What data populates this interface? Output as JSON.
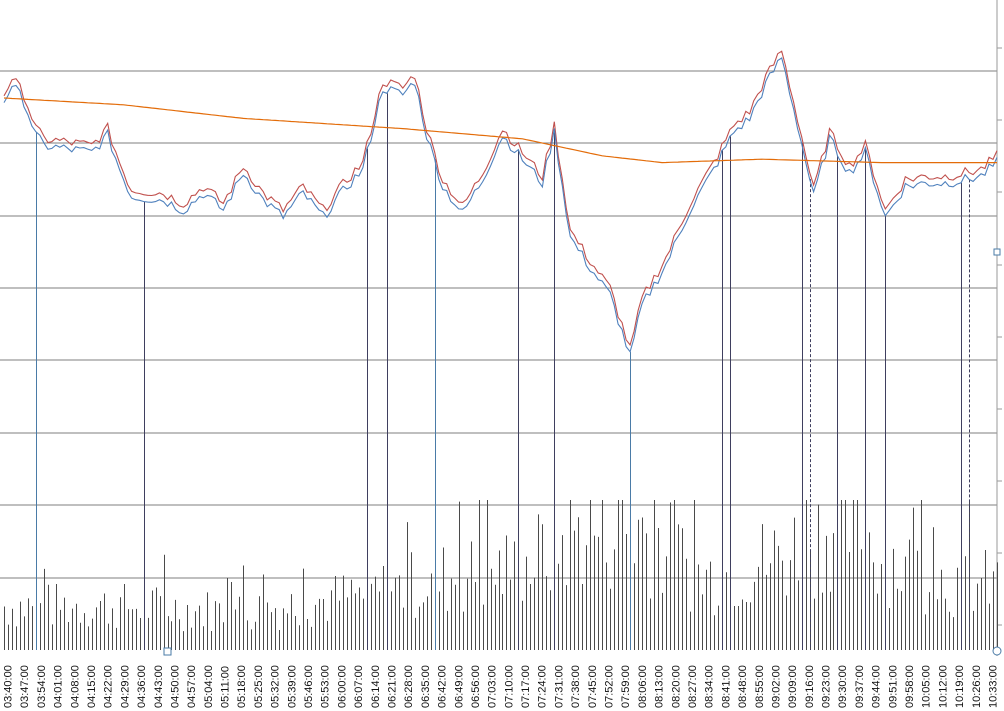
{
  "colors": {
    "background": "#ffffff",
    "grid": "#7f7f7f",
    "high_line": "#c0504d",
    "low_line": "#4f81bd",
    "moving_average": "#e36c09",
    "volume_bars": "#4a4a4a",
    "signal_line_blue": "#4a7ba7",
    "signal_line_dark": "#3f3f5f",
    "handle": "#4a7ba7"
  },
  "chart_data": {
    "type": "line",
    "x_tick_labels": [
      "03:40:00",
      "03:47:00",
      "03:54:00",
      "04:01:00",
      "04:08:00",
      "04:15:00",
      "04:22:00",
      "04:29:00",
      "04:36:00",
      "04:43:00",
      "04:50:00",
      "04:57:00",
      "05:04:00",
      "05:11:00",
      "05:18:00",
      "05:25:00",
      "05:32:00",
      "05:39:00",
      "05:46:00",
      "05:53:00",
      "06:00:00",
      "06:07:00",
      "06:14:00",
      "06:21:00",
      "06:28:00",
      "06:35:00",
      "06:42:00",
      "06:49:00",
      "06:56:00",
      "07:03:00",
      "07:10:00",
      "07:17:00",
      "07:24:00",
      "07:31:00",
      "07:38:00",
      "07:45:00",
      "07:52:00",
      "07:59:00",
      "08:06:00",
      "08:13:00",
      "08:20:00",
      "08:27:00",
      "08:34:00",
      "08:41:00",
      "08:48:00",
      "08:55:00",
      "09:02:00",
      "09:09:00",
      "09:16:00",
      "09:23:00",
      "09:30:00",
      "09:37:00",
      "09:44:00",
      "09:51:00",
      "09:58:00",
      "10:05:00",
      "10:12:00",
      "10:19:00",
      "10:26:00",
      "10:33:00"
    ],
    "price_keypoints": [
      {
        "t": 0,
        "v": 80
      },
      {
        "t": 2,
        "v": 85
      },
      {
        "t": 5,
        "v": 80
      },
      {
        "t": 8,
        "v": 70
      },
      {
        "t": 10,
        "v": 67
      },
      {
        "t": 16,
        "v": 66
      },
      {
        "t": 22,
        "v": 65
      },
      {
        "t": 26,
        "v": 70
      },
      {
        "t": 29,
        "v": 60
      },
      {
        "t": 32,
        "v": 52
      },
      {
        "t": 40,
        "v": 51
      },
      {
        "t": 45,
        "v": 48
      },
      {
        "t": 50,
        "v": 53
      },
      {
        "t": 55,
        "v": 48
      },
      {
        "t": 60,
        "v": 59
      },
      {
        "t": 65,
        "v": 51
      },
      {
        "t": 70,
        "v": 46
      },
      {
        "t": 75,
        "v": 53
      },
      {
        "t": 80,
        "v": 46
      },
      {
        "t": 86,
        "v": 55
      },
      {
        "t": 90,
        "v": 60
      },
      {
        "t": 95,
        "v": 84
      },
      {
        "t": 100,
        "v": 82
      },
      {
        "t": 103,
        "v": 86
      },
      {
        "t": 106,
        "v": 70
      },
      {
        "t": 110,
        "v": 55
      },
      {
        "t": 115,
        "v": 47
      },
      {
        "t": 120,
        "v": 57
      },
      {
        "t": 125,
        "v": 70
      },
      {
        "t": 130,
        "v": 63
      },
      {
        "t": 135,
        "v": 56
      },
      {
        "t": 138,
        "v": 71
      },
      {
        "t": 142,
        "v": 40
      },
      {
        "t": 147,
        "v": 31
      },
      {
        "t": 152,
        "v": 23
      },
      {
        "t": 157,
        "v": 5
      },
      {
        "t": 160,
        "v": 20
      },
      {
        "t": 166,
        "v": 32
      },
      {
        "t": 172,
        "v": 48
      },
      {
        "t": 178,
        "v": 60
      },
      {
        "t": 183,
        "v": 71
      },
      {
        "t": 187,
        "v": 75
      },
      {
        "t": 191,
        "v": 85
      },
      {
        "t": 195,
        "v": 93
      },
      {
        "t": 199,
        "v": 73
      },
      {
        "t": 203,
        "v": 52
      },
      {
        "t": 207,
        "v": 69
      },
      {
        "t": 212,
        "v": 59
      },
      {
        "t": 216,
        "v": 65
      },
      {
        "t": 221,
        "v": 46
      },
      {
        "t": 226,
        "v": 55
      },
      {
        "t": 231,
        "v": 56
      },
      {
        "t": 236,
        "v": 56
      },
      {
        "t": 241,
        "v": 57
      },
      {
        "t": 245,
        "v": 58
      },
      {
        "t": 249,
        "v": 62
      }
    ],
    "moving_average_keypoints": [
      {
        "t": 0,
        "v": 80
      },
      {
        "t": 30,
        "v": 78
      },
      {
        "t": 60,
        "v": 74
      },
      {
        "t": 100,
        "v": 71
      },
      {
        "t": 130,
        "v": 68
      },
      {
        "t": 150,
        "v": 63
      },
      {
        "t": 165,
        "v": 61
      },
      {
        "t": 190,
        "v": 62
      },
      {
        "t": 220,
        "v": 61
      },
      {
        "t": 249,
        "v": 61
      }
    ],
    "volume_profile": [
      {
        "t": 0,
        "v": 8
      },
      {
        "t": 30,
        "v": 8
      },
      {
        "t": 60,
        "v": 7
      },
      {
        "t": 90,
        "v": 10
      },
      {
        "t": 110,
        "v": 13
      },
      {
        "t": 130,
        "v": 15
      },
      {
        "t": 145,
        "v": 22
      },
      {
        "t": 160,
        "v": 22
      },
      {
        "t": 175,
        "v": 13
      },
      {
        "t": 195,
        "v": 17
      },
      {
        "t": 210,
        "v": 24
      },
      {
        "t": 225,
        "v": 15
      },
      {
        "t": 240,
        "v": 12
      },
      {
        "t": 249,
        "v": 12
      }
    ],
    "signal_markers": [
      {
        "t": 8,
        "color": "blue",
        "style": "solid"
      },
      {
        "t": 35,
        "color": "dark",
        "style": "solid"
      },
      {
        "t": 91,
        "color": "dark",
        "style": "solid"
      },
      {
        "t": 96,
        "color": "dark",
        "style": "solid"
      },
      {
        "t": 108,
        "color": "blue",
        "style": "solid"
      },
      {
        "t": 129,
        "color": "dark",
        "style": "solid"
      },
      {
        "t": 138,
        "color": "dark",
        "style": "solid"
      },
      {
        "t": 157,
        "color": "blue",
        "style": "solid"
      },
      {
        "t": 180,
        "color": "dark",
        "style": "solid"
      },
      {
        "t": 182,
        "color": "dark",
        "style": "solid"
      },
      {
        "t": 200,
        "color": "dark",
        "style": "solid"
      },
      {
        "t": 202,
        "color": "dark",
        "style": "dashed"
      },
      {
        "t": 209,
        "color": "dark",
        "style": "solid"
      },
      {
        "t": 216,
        "color": "dark",
        "style": "solid"
      },
      {
        "t": 221,
        "color": "dark",
        "style": "solid"
      },
      {
        "t": 240,
        "color": "dark",
        "style": "solid"
      },
      {
        "t": 242,
        "color": "dark",
        "style": "dashed"
      }
    ],
    "samples": 250,
    "high_low_spread": 2,
    "grid": true,
    "legend": "none"
  }
}
